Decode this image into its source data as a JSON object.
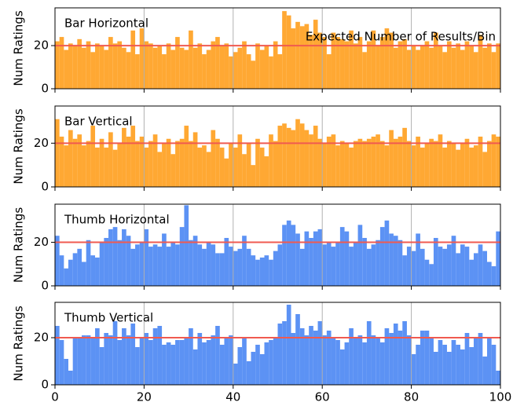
{
  "chart_data": [
    {
      "type": "histogram",
      "title": "Bar Horizontal",
      "ylabel": "Num Ratings",
      "color": "#ffa833",
      "bins": [
        0,
        1,
        2,
        3,
        4,
        5,
        6,
        7,
        8,
        9,
        10,
        11,
        12,
        13,
        14,
        15,
        16,
        17,
        18,
        19,
        20,
        21,
        22,
        23,
        24,
        25,
        26,
        27,
        28,
        29,
        30,
        31,
        32,
        33,
        34,
        35,
        36,
        37,
        38,
        39,
        40,
        41,
        42,
        43,
        44,
        45,
        46,
        47,
        48,
        49,
        50,
        51,
        52,
        53,
        54,
        55,
        56,
        57,
        58,
        59,
        60,
        61,
        62,
        63,
        64,
        65,
        66,
        67,
        68,
        69,
        70,
        71,
        72,
        73,
        74,
        75,
        76,
        77,
        78,
        79,
        80,
        81,
        82,
        83,
        84,
        85,
        86,
        87,
        88,
        89,
        90,
        91,
        92,
        93,
        94,
        95,
        96,
        97,
        98,
        99,
        100
      ],
      "values": [
        22,
        24,
        18,
        21,
        20,
        23,
        19,
        22,
        17,
        21,
        20,
        18,
        24,
        21,
        22,
        19,
        17,
        27,
        16,
        28,
        22,
        21,
        19,
        20,
        16,
        21,
        18,
        24,
        19,
        18,
        27,
        19,
        21,
        16,
        18,
        22,
        24,
        20,
        21,
        15,
        17,
        19,
        22,
        16,
        13,
        21,
        18,
        20,
        15,
        22,
        16,
        36,
        34,
        28,
        31,
        29,
        30,
        25,
        32,
        26,
        24,
        16,
        26,
        24,
        23,
        22,
        27,
        21,
        24,
        17,
        22,
        27,
        20,
        24,
        28,
        26,
        19,
        22,
        23,
        18,
        20,
        18,
        20,
        22,
        19,
        26,
        20,
        17,
        22,
        19,
        21,
        18,
        22,
        20,
        17,
        25,
        19,
        21,
        17,
        21
      ],
      "reference_line": {
        "value": 20,
        "color": "#f05a50",
        "label": "Expected Number of Results/Bin"
      },
      "xlim": [
        0,
        100
      ],
      "xticks": [
        0,
        20,
        40,
        60,
        80,
        100
      ],
      "show_xtick_labels": false,
      "ylim": [
        0,
        37.5
      ],
      "yticks": [
        0,
        20
      ],
      "grid": "x"
    },
    {
      "type": "histogram",
      "title": "Bar Vertical",
      "ylabel": "Num Ratings",
      "color": "#ffa833",
      "bins": [
        0,
        1,
        2,
        3,
        4,
        5,
        6,
        7,
        8,
        9,
        10,
        11,
        12,
        13,
        14,
        15,
        16,
        17,
        18,
        19,
        20,
        21,
        22,
        23,
        24,
        25,
        26,
        27,
        28,
        29,
        30,
        31,
        32,
        33,
        34,
        35,
        36,
        37,
        38,
        39,
        40,
        41,
        42,
        43,
        44,
        45,
        46,
        47,
        48,
        49,
        50,
        51,
        52,
        53,
        54,
        55,
        56,
        57,
        58,
        59,
        60,
        61,
        62,
        63,
        64,
        65,
        66,
        67,
        68,
        69,
        70,
        71,
        72,
        73,
        74,
        75,
        76,
        77,
        78,
        79,
        80,
        81,
        82,
        83,
        84,
        85,
        86,
        87,
        88,
        89,
        90,
        91,
        92,
        93,
        94,
        95,
        96,
        97,
        98,
        99,
        100
      ],
      "values": [
        31,
        23,
        19,
        26,
        22,
        24,
        19,
        21,
        28,
        18,
        22,
        18,
        25,
        17,
        20,
        27,
        23,
        28,
        21,
        23,
        18,
        21,
        24,
        16,
        20,
        22,
        15,
        21,
        22,
        28,
        21,
        25,
        18,
        19,
        16,
        26,
        22,
        18,
        13,
        20,
        18,
        24,
        15,
        20,
        10,
        22,
        18,
        14,
        24,
        21,
        28,
        29,
        27,
        26,
        31,
        29,
        26,
        24,
        28,
        22,
        20,
        23,
        24,
        19,
        21,
        20,
        18,
        21,
        22,
        21,
        22,
        23,
        24,
        21,
        19,
        26,
        22,
        23,
        27,
        21,
        19,
        23,
        18,
        20,
        22,
        21,
        24,
        18,
        21,
        20,
        17,
        20,
        22,
        18,
        19,
        23,
        16,
        21,
        24,
        23
      ],
      "reference_line": {
        "value": 20,
        "color": "#f05a50"
      },
      "xlim": [
        0,
        100
      ],
      "xticks": [
        0,
        20,
        40,
        60,
        80,
        100
      ],
      "show_xtick_labels": false,
      "ylim": [
        0,
        37
      ],
      "yticks": [
        0,
        20
      ],
      "grid": "x"
    },
    {
      "type": "histogram",
      "title": "Thumb Horizontal",
      "ylabel": "Num Ratings",
      "color": "#5c92f4",
      "bins": [
        0,
        1,
        2,
        3,
        4,
        5,
        6,
        7,
        8,
        9,
        10,
        11,
        12,
        13,
        14,
        15,
        16,
        17,
        18,
        19,
        20,
        21,
        22,
        23,
        24,
        25,
        26,
        27,
        28,
        29,
        30,
        31,
        32,
        33,
        34,
        35,
        36,
        37,
        38,
        39,
        40,
        41,
        42,
        43,
        44,
        45,
        46,
        47,
        48,
        49,
        50,
        51,
        52,
        53,
        54,
        55,
        56,
        57,
        58,
        59,
        60,
        61,
        62,
        63,
        64,
        65,
        66,
        67,
        68,
        69,
        70,
        71,
        72,
        73,
        74,
        75,
        76,
        77,
        78,
        79,
        80,
        81,
        82,
        83,
        84,
        85,
        86,
        87,
        88,
        89,
        90,
        91,
        92,
        93,
        94,
        95,
        96,
        97,
        98,
        99,
        100
      ],
      "values": [
        23,
        14,
        8,
        12,
        15,
        17,
        11,
        21,
        14,
        13,
        20,
        22,
        26,
        27,
        21,
        26,
        23,
        17,
        19,
        20,
        26,
        18,
        19,
        18,
        24,
        18,
        20,
        19,
        27,
        37,
        21,
        23,
        19,
        17,
        20,
        19,
        15,
        15,
        22,
        18,
        16,
        17,
        23,
        17,
        14,
        12,
        13,
        14,
        12,
        16,
        19,
        28,
        30,
        28,
        24,
        17,
        25,
        22,
        25,
        26,
        19,
        20,
        18,
        20,
        27,
        25,
        18,
        20,
        28,
        22,
        17,
        19,
        21,
        27,
        30,
        24,
        23,
        21,
        14,
        18,
        16,
        24,
        17,
        12,
        10,
        22,
        18,
        17,
        19,
        23,
        15,
        19,
        18,
        12,
        15,
        19,
        16,
        11,
        9,
        25
      ],
      "reference_line": {
        "value": 20,
        "color": "#f05a50"
      },
      "xlim": [
        0,
        100
      ],
      "xticks": [
        0,
        20,
        40,
        60,
        80,
        100
      ],
      "show_xtick_labels": false,
      "ylim": [
        0,
        37.5
      ],
      "yticks": [
        0,
        20
      ],
      "grid": "x"
    },
    {
      "type": "histogram",
      "title": "Thumb Vertical",
      "ylabel": "Num Ratings",
      "color": "#5c92f4",
      "bins": [
        0,
        1,
        2,
        3,
        4,
        5,
        6,
        7,
        8,
        9,
        10,
        11,
        12,
        13,
        14,
        15,
        16,
        17,
        18,
        19,
        20,
        21,
        22,
        23,
        24,
        25,
        26,
        27,
        28,
        29,
        30,
        31,
        32,
        33,
        34,
        35,
        36,
        37,
        38,
        39,
        40,
        41,
        42,
        43,
        44,
        45,
        46,
        47,
        48,
        49,
        50,
        51,
        52,
        53,
        54,
        55,
        56,
        57,
        58,
        59,
        60,
        61,
        62,
        63,
        64,
        65,
        66,
        67,
        68,
        69,
        70,
        71,
        72,
        73,
        74,
        75,
        76,
        77,
        78,
        79,
        80,
        81,
        82,
        83,
        84,
        85,
        86,
        87,
        88,
        89,
        90,
        91,
        92,
        93,
        94,
        95,
        96,
        97,
        98,
        99,
        100
      ],
      "values": [
        25,
        19,
        11,
        6,
        20,
        20,
        21,
        21,
        20,
        24,
        16,
        22,
        21,
        27,
        19,
        24,
        21,
        26,
        16,
        20,
        22,
        19,
        24,
        25,
        17,
        18,
        17,
        19,
        19,
        20,
        24,
        15,
        22,
        18,
        19,
        21,
        25,
        17,
        20,
        21,
        9,
        16,
        20,
        10,
        14,
        17,
        13,
        18,
        19,
        20,
        26,
        27,
        34,
        22,
        30,
        24,
        21,
        25,
        23,
        27,
        21,
        23,
        20,
        19,
        15,
        18,
        24,
        20,
        21,
        18,
        27,
        21,
        20,
        18,
        24,
        22,
        26,
        23,
        27,
        21,
        13,
        17,
        23,
        23,
        20,
        14,
        19,
        17,
        14,
        19,
        17,
        15,
        22,
        16,
        20,
        22,
        12,
        20,
        17,
        6
      ],
      "reference_line": {
        "value": 20,
        "color": "#f05a50"
      },
      "xlim": [
        0,
        100
      ],
      "xticks": [
        0,
        20,
        40,
        60,
        80,
        100
      ],
      "show_xtick_labels": true,
      "ylim": [
        0,
        35
      ],
      "yticks": [
        0,
        20
      ],
      "grid": "x"
    }
  ]
}
